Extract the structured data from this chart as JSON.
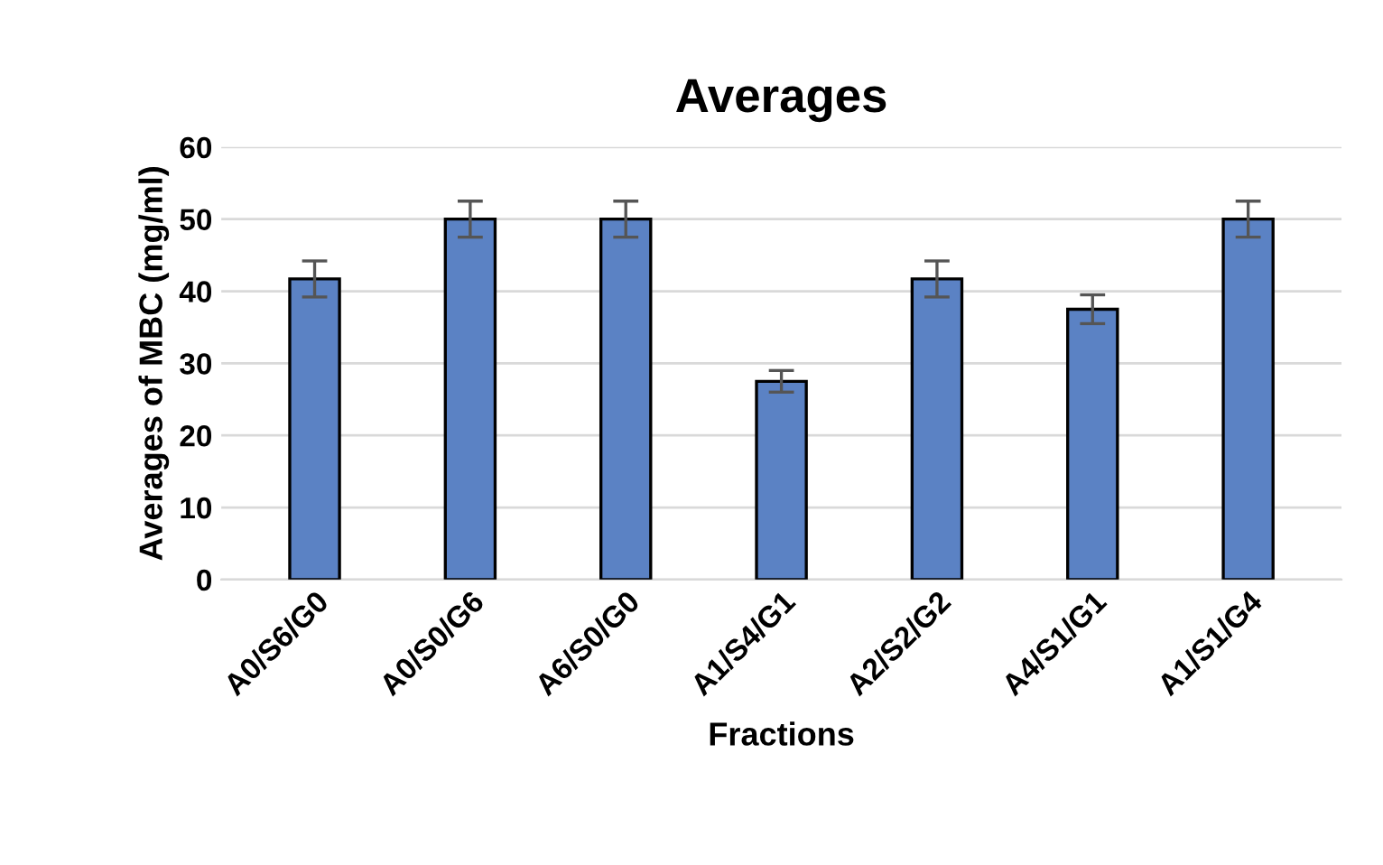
{
  "chart_data": {
    "type": "bar",
    "title": "Averages",
    "xlabel": "Fractions",
    "ylabel": "Averages of MBC (mg/ml)",
    "categories": [
      "A0/S6/G0",
      "A0/S0/G6",
      "A6/S0/G0",
      "A1/S4/G1",
      "A2/S2/G2",
      "A4/S1/G1",
      "A1/S1/G4"
    ],
    "values": [
      41.7,
      50,
      50,
      27.5,
      41.7,
      37.5,
      50
    ],
    "errors": [
      2.5,
      2.5,
      2.5,
      1.5,
      2.5,
      2,
      2.5
    ],
    "color": "#5b82c4",
    "ylim": [
      0,
      60
    ],
    "yticks": [
      0,
      10,
      20,
      30,
      40,
      50,
      60
    ],
    "grid": "y"
  }
}
